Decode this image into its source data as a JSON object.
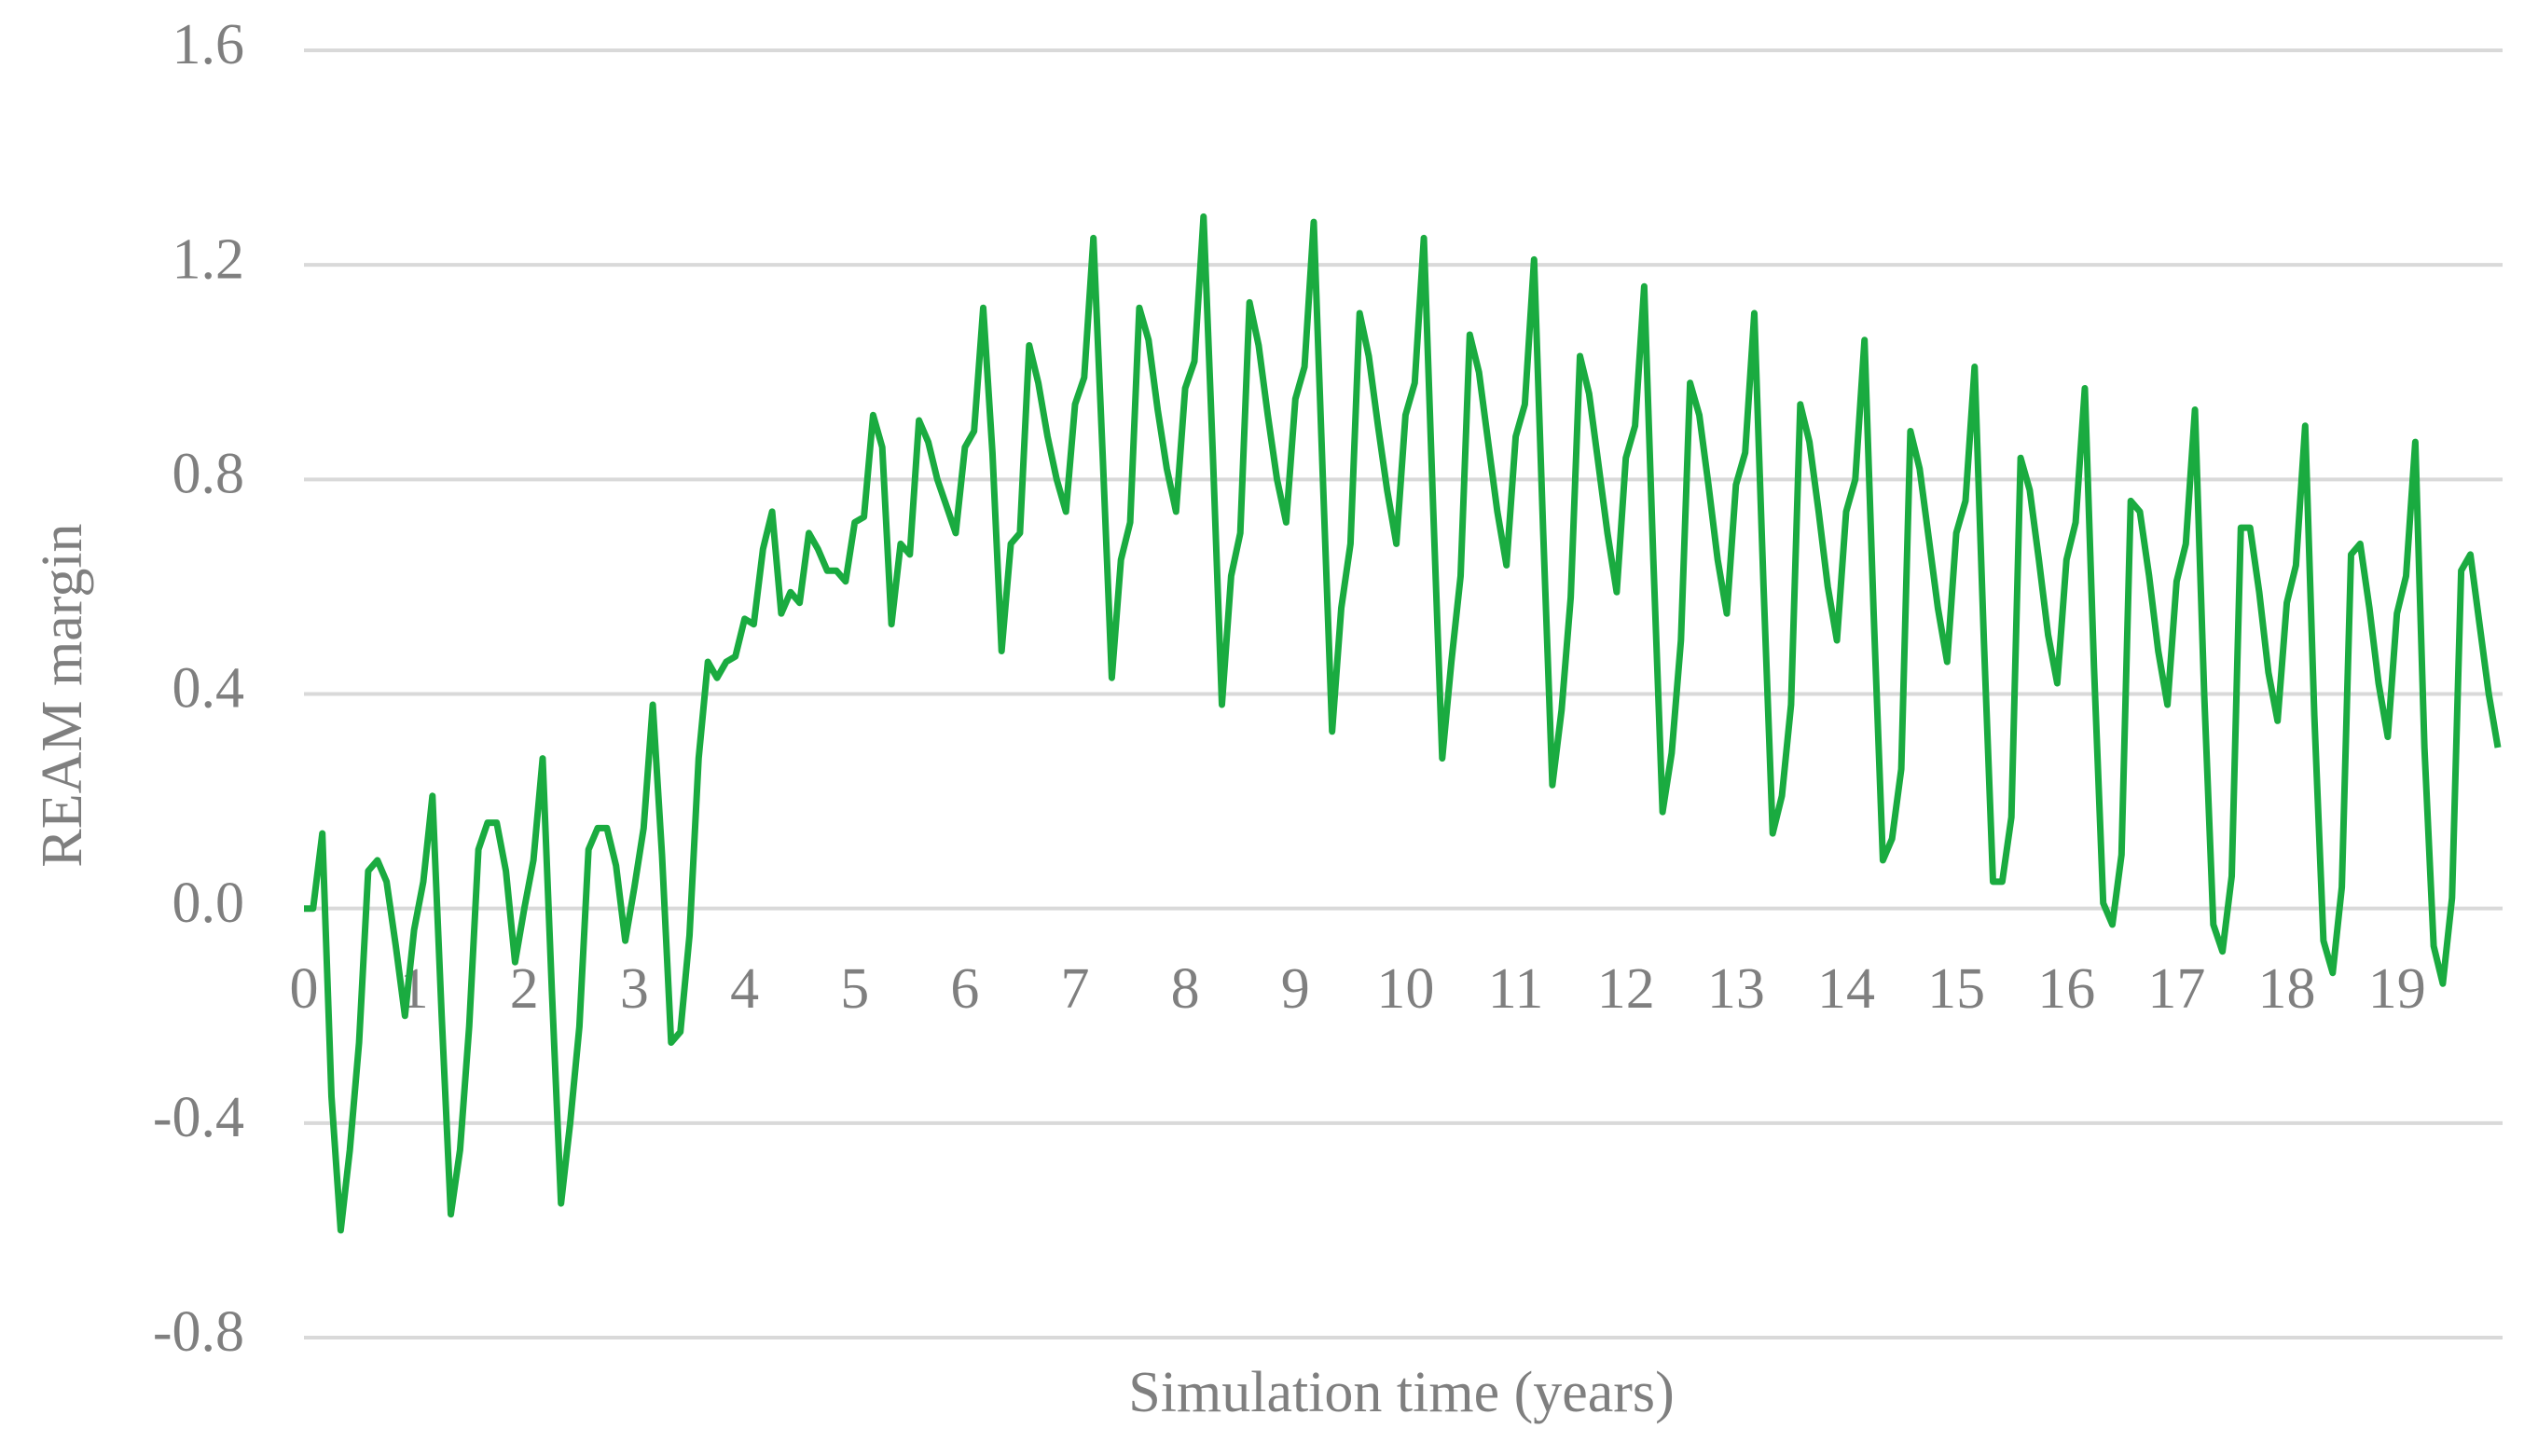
{
  "chart_data": {
    "type": "line",
    "x_label": "Simulation time (years)",
    "y_label": "REAM margin",
    "categories": [
      "0",
      null,
      null,
      null,
      null,
      null,
      null,
      null,
      null,
      null,
      null,
      null,
      "1",
      null,
      null,
      null,
      null,
      null,
      null,
      null,
      null,
      null,
      null,
      null,
      "2",
      null,
      null,
      null,
      null,
      null,
      null,
      null,
      null,
      null,
      null,
      null,
      "3",
      null,
      null,
      null,
      null,
      null,
      null,
      null,
      null,
      null,
      null,
      null,
      "4",
      null,
      null,
      null,
      null,
      null,
      null,
      null,
      null,
      null,
      null,
      null,
      "5",
      null,
      null,
      null,
      null,
      null,
      null,
      null,
      null,
      null,
      null,
      null,
      "6",
      null,
      null,
      null,
      null,
      null,
      null,
      null,
      null,
      null,
      null,
      null,
      "7",
      null,
      null,
      null,
      null,
      null,
      null,
      null,
      null,
      null,
      null,
      null,
      "8",
      null,
      null,
      null,
      null,
      null,
      null,
      null,
      null,
      null,
      null,
      null,
      "9",
      null,
      null,
      null,
      null,
      null,
      null,
      null,
      null,
      null,
      null,
      null,
      "10",
      null,
      null,
      null,
      null,
      null,
      null,
      null,
      null,
      null,
      null,
      null,
      "11",
      null,
      null,
      null,
      null,
      null,
      null,
      null,
      null,
      null,
      null,
      null,
      "12",
      null,
      null,
      null,
      null,
      null,
      null,
      null,
      null,
      null,
      null,
      null,
      "13",
      null,
      null,
      null,
      null,
      null,
      null,
      null,
      null,
      null,
      null,
      null,
      "14",
      null,
      null,
      null,
      null,
      null,
      null,
      null,
      null,
      null,
      null,
      null,
      "15",
      null,
      null,
      null,
      null,
      null,
      null,
      null,
      null,
      null,
      null,
      null,
      "16",
      null,
      null,
      null,
      null,
      null,
      null,
      null,
      null,
      null,
      null,
      null,
      "17",
      null,
      null,
      null,
      null,
      null,
      null,
      null,
      null,
      null,
      null,
      null,
      "18",
      null,
      null,
      null,
      null,
      null,
      null,
      null,
      null,
      null,
      null,
      null,
      "19",
      null,
      null,
      null,
      null,
      null,
      null,
      null,
      null,
      null,
      null,
      null
    ],
    "values": [
      0,
      0,
      0.14,
      -0.35,
      -0.6,
      -0.45,
      -0.25,
      0.07,
      0.09,
      0.05,
      -0.07,
      -0.2,
      -0.04,
      0.05,
      0.21,
      -0.2,
      -0.57,
      -0.45,
      -0.22,
      0.11,
      0.16,
      0.16,
      0.07,
      -0.1,
      0,
      0.09,
      0.28,
      -0.15,
      -0.55,
      -0.4,
      -0.22,
      0.11,
      0.15,
      0.15,
      0.08,
      -0.06,
      0.04,
      0.15,
      0.38,
      0.1,
      -0.25,
      -0.23,
      -0.05,
      0.28,
      0.46,
      0.43,
      0.46,
      0.47,
      0.54,
      0.53,
      0.67,
      0.74,
      0.55,
      0.59,
      0.57,
      0.7,
      0.67,
      0.63,
      0.63,
      0.61,
      0.72,
      0.73,
      0.92,
      0.86,
      0.53,
      0.68,
      0.66,
      0.91,
      0.87,
      0.8,
      0.75,
      0.7,
      0.86,
      0.89,
      1.12,
      0.85,
      0.48,
      0.68,
      0.7,
      1.05,
      0.98,
      0.88,
      0.8,
      0.74,
      0.94,
      0.99,
      1.25,
      0.85,
      0.43,
      0.65,
      0.72,
      1.12,
      1.06,
      0.93,
      0.82,
      0.74,
      0.97,
      1.02,
      1.29,
      0.85,
      0.38,
      0.62,
      0.7,
      1.13,
      1.05,
      0.92,
      0.8,
      0.72,
      0.95,
      1.01,
      1.28,
      0.8,
      0.33,
      0.56,
      0.68,
      1.11,
      1.03,
      0.9,
      0.78,
      0.68,
      0.92,
      0.98,
      1.25,
      0.75,
      0.28,
      0.46,
      0.62,
      1.07,
      1,
      0.87,
      0.74,
      0.64,
      0.88,
      0.94,
      1.21,
      0.7,
      0.23,
      0.37,
      0.58,
      1.03,
      0.96,
      0.83,
      0.7,
      0.59,
      0.84,
      0.9,
      1.16,
      0.65,
      0.18,
      0.29,
      0.5,
      0.98,
      0.92,
      0.79,
      0.65,
      0.55,
      0.79,
      0.85,
      1.11,
      0.6,
      0.14,
      0.21,
      0.38,
      0.94,
      0.87,
      0.74,
      0.6,
      0.5,
      0.74,
      0.8,
      1.06,
      0.55,
      0.09,
      0.13,
      0.26,
      0.89,
      0.82,
      0.69,
      0.56,
      0.46,
      0.7,
      0.76,
      1.01,
      0.5,
      0.05,
      0.05,
      0.17,
      0.84,
      0.78,
      0.65,
      0.51,
      0.42,
      0.65,
      0.72,
      0.97,
      0.45,
      0.01,
      -0.03,
      0.1,
      0.76,
      0.74,
      0.62,
      0.48,
      0.38,
      0.61,
      0.68,
      0.93,
      0.4,
      -0.03,
      -0.08,
      0.06,
      0.71,
      0.71,
      0.59,
      0.44,
      0.35,
      0.57,
      0.64,
      0.9,
      0.36,
      -0.06,
      -0.12,
      0.04,
      0.66,
      0.68,
      0.56,
      0.42,
      0.32,
      0.55,
      0.62,
      0.87,
      0.3,
      -0.07,
      -0.14,
      0.02,
      0.63,
      0.66,
      0.53,
      0.4,
      0.3
    ],
    "color": "#1aab40",
    "ylim": [
      -0.8,
      1.6
    ],
    "yticks": [
      -0.8,
      -0.4,
      {
        "value": 0,
        "label": "0.0"
      },
      0.4,
      0.8,
      1.2,
      1.6
    ],
    "grid": true
  }
}
